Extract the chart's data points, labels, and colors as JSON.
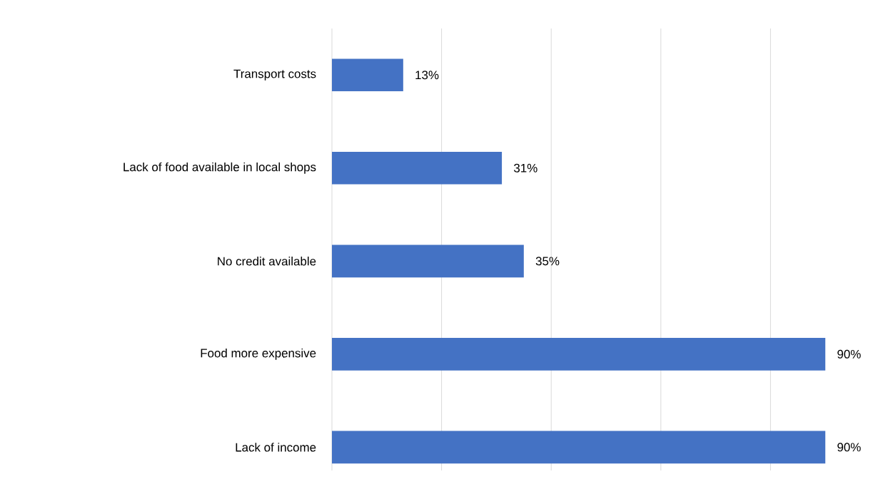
{
  "chart_data": {
    "type": "bar",
    "orientation": "horizontal",
    "categories": [
      "Transport costs",
      "Lack of food available in local shops",
      "No credit available",
      "Food more expensive",
      "Lack of income"
    ],
    "values": [
      13,
      31,
      35,
      90,
      90
    ],
    "value_labels": [
      "13%",
      "31%",
      "35%",
      "90%",
      "90%"
    ],
    "color": "#4472c4",
    "xticks": [
      {
        "value": 0,
        "label": null
      },
      {
        "value": 20,
        "label": null
      },
      {
        "value": 40,
        "label": null
      },
      {
        "value": 60,
        "label": null
      },
      {
        "value": 80,
        "label": null
      }
    ],
    "tick_labels": "y",
    "grid": "x"
  }
}
